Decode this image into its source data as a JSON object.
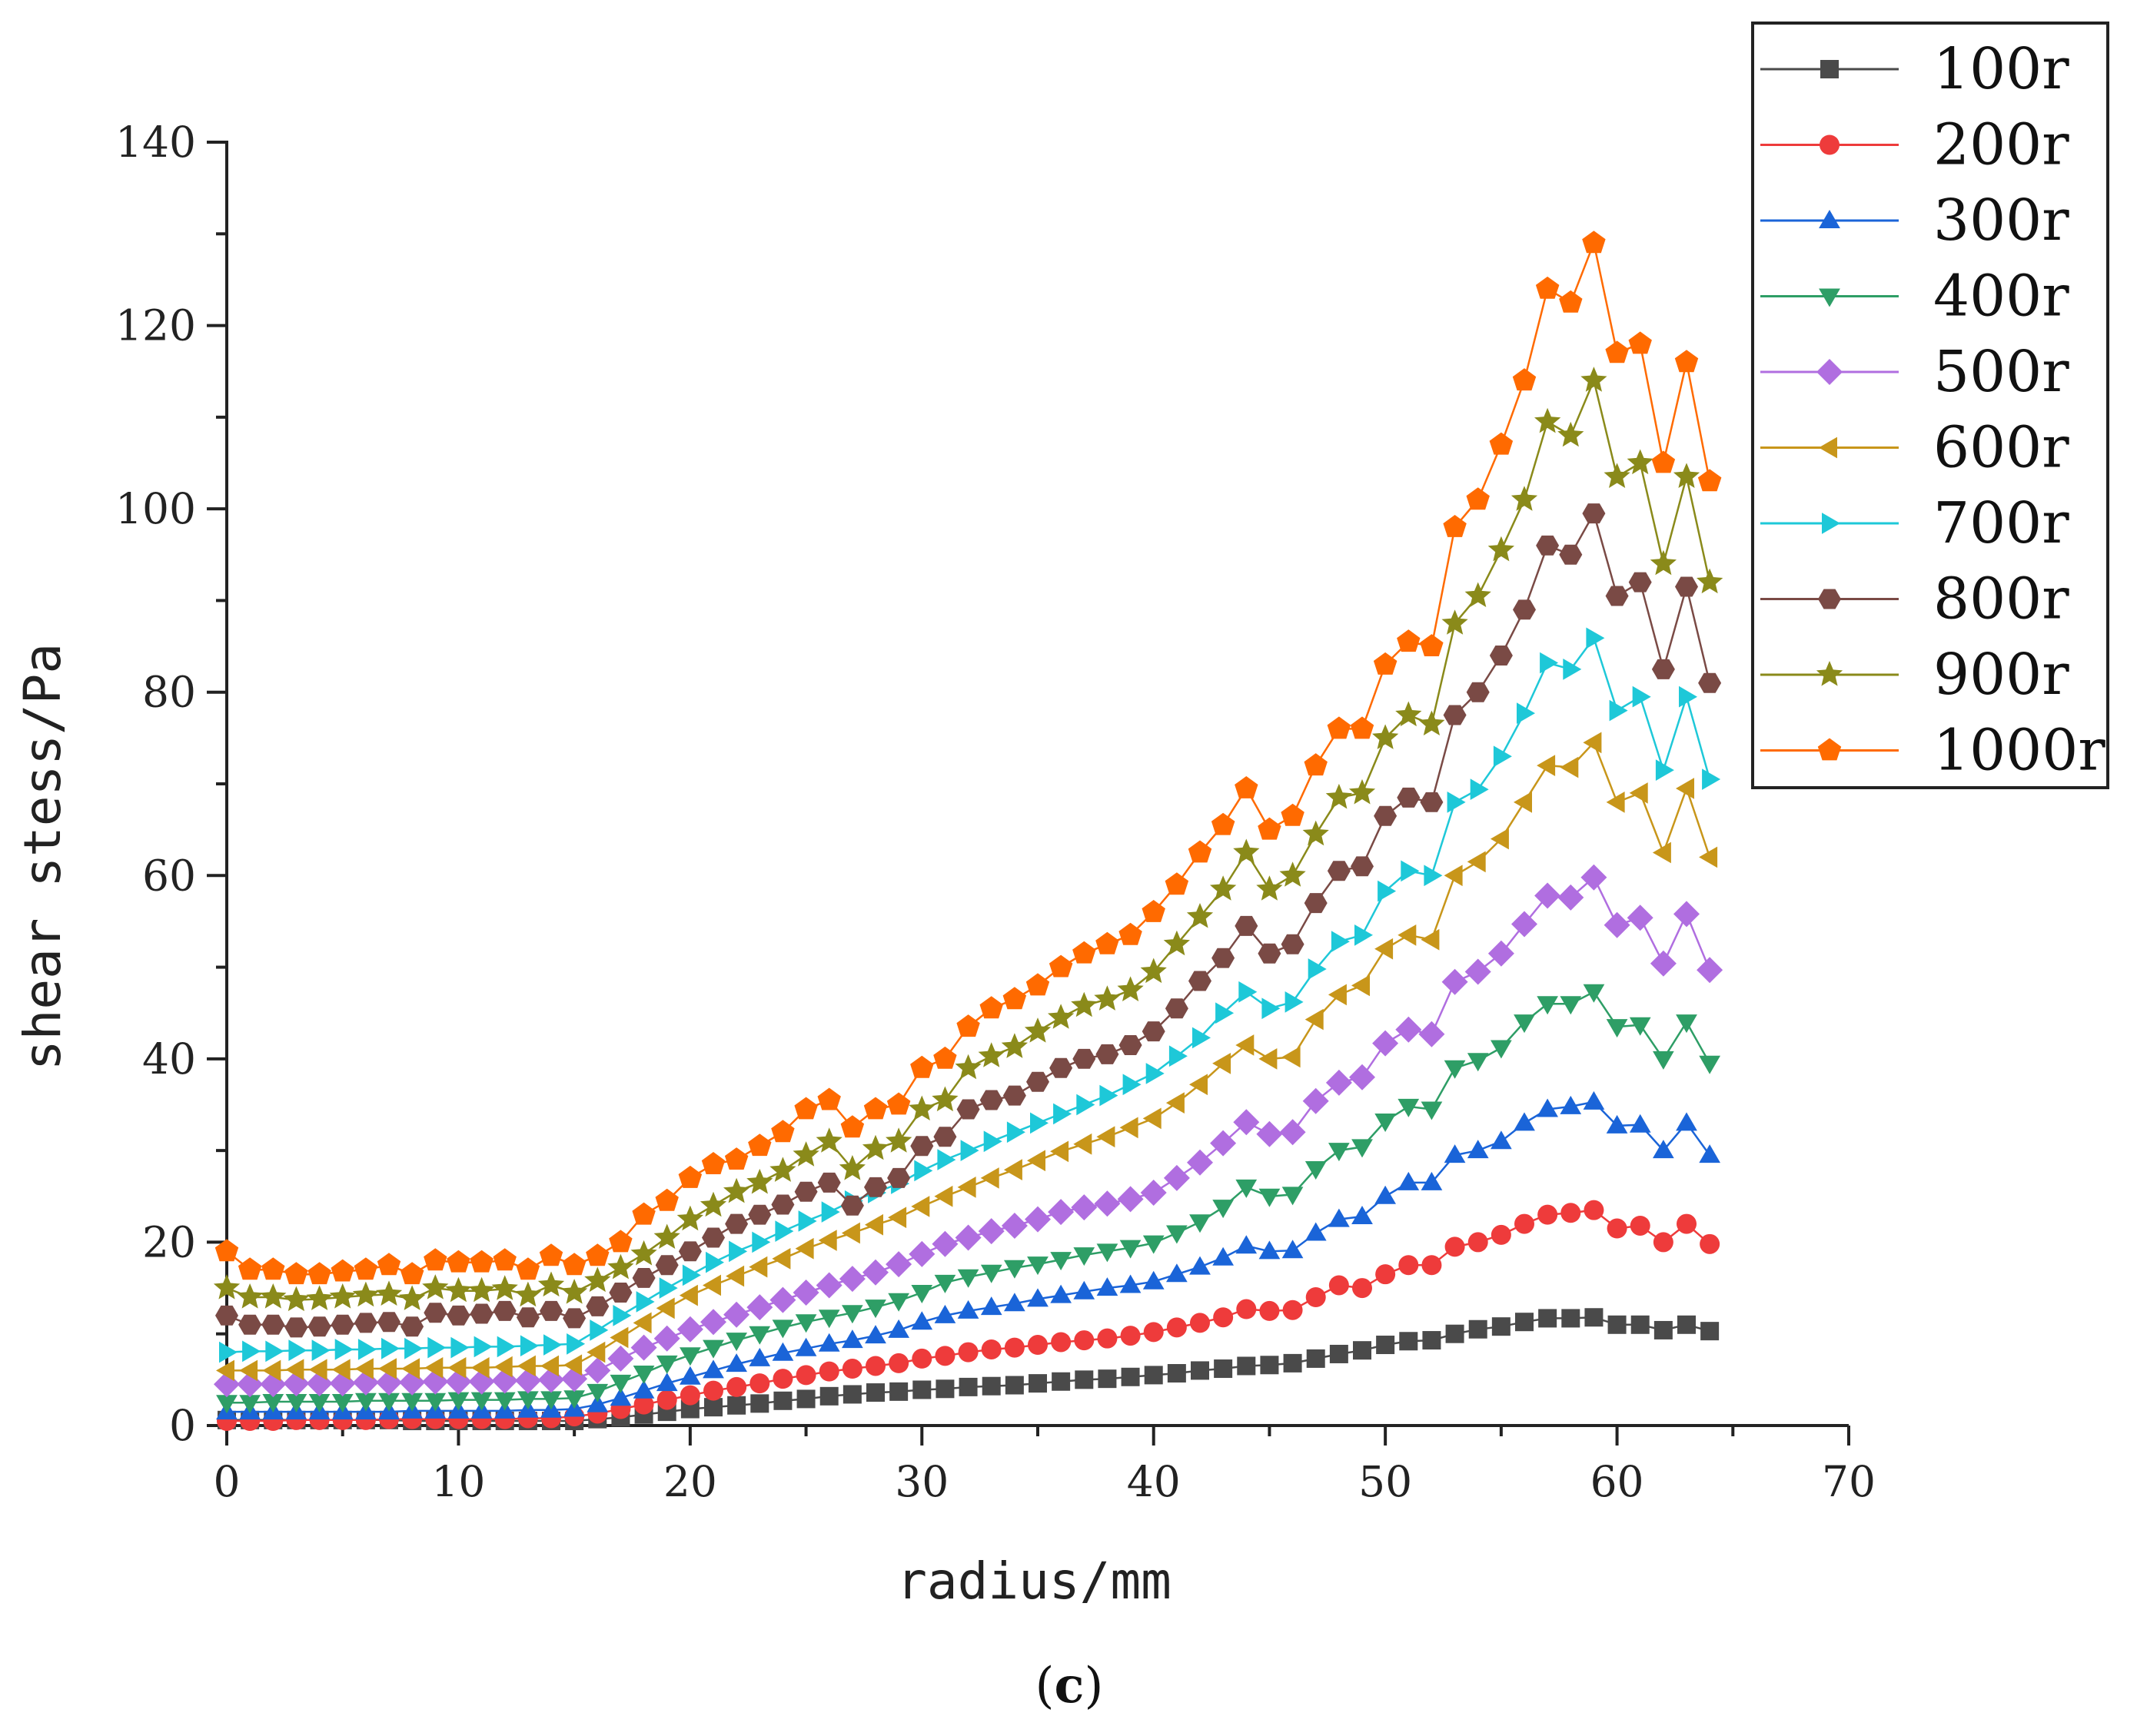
{
  "chart_data": {
    "type": "line",
    "title": "",
    "xlabel": "radius/mm",
    "ylabel": "shear stess/Pa",
    "xlim": [
      0,
      70
    ],
    "ylim": [
      0,
      140
    ],
    "xticks": [
      0,
      10,
      20,
      30,
      40,
      50,
      60,
      70
    ],
    "yticks": [
      0,
      20,
      40,
      60,
      80,
      100,
      120,
      140
    ],
    "grid": false,
    "legend_position": "top-right",
    "caption": {
      "open": "(",
      "letter": "c",
      "close": ")"
    },
    "x": [
      0,
      1,
      2,
      3,
      4,
      5,
      6,
      7,
      8,
      9,
      10,
      11,
      12,
      13,
      14,
      15,
      16,
      17,
      18,
      19,
      20,
      21,
      22,
      23,
      24,
      25,
      26,
      27,
      28,
      29,
      30,
      31,
      32,
      33,
      34,
      35,
      36,
      37,
      38,
      39,
      40,
      41,
      42,
      43,
      44,
      45,
      46,
      47,
      48,
      49,
      50,
      51,
      52,
      53,
      54,
      55,
      56,
      57,
      58,
      59,
      60,
      61,
      62,
      63,
      64
    ],
    "series": [
      {
        "name": "100r",
        "color": "#4a4a4a",
        "marker": "square",
        "values": [
          0.6,
          0.6,
          0.6,
          0.6,
          0.6,
          0.6,
          0.6,
          0.6,
          0.5,
          0.5,
          0.5,
          0.5,
          0.5,
          0.5,
          0.5,
          0.5,
          0.7,
          0.9,
          1.2,
          1.5,
          1.8,
          2.0,
          2.2,
          2.4,
          2.7,
          2.9,
          3.2,
          3.4,
          3.6,
          3.7,
          3.9,
          4.0,
          4.2,
          4.3,
          4.4,
          4.6,
          4.8,
          5.0,
          5.1,
          5.3,
          5.5,
          5.7,
          6.0,
          6.2,
          6.5,
          6.6,
          6.8,
          7.3,
          7.8,
          8.2,
          8.8,
          9.2,
          9.3,
          10.0,
          10.5,
          10.8,
          11.3,
          11.7,
          11.7,
          11.8,
          11.0,
          11.0,
          10.4,
          11.0,
          10.3
        ]
      },
      {
        "name": "200r",
        "color": "#ee3b3b",
        "marker": "circle",
        "values": [
          0.5,
          0.5,
          0.5,
          0.6,
          0.6,
          0.6,
          0.6,
          0.7,
          0.7,
          0.7,
          0.7,
          0.7,
          0.7,
          0.8,
          0.8,
          1.0,
          1.3,
          1.8,
          2.3,
          2.8,
          3.3,
          3.8,
          4.2,
          4.6,
          5.1,
          5.5,
          5.9,
          6.2,
          6.5,
          6.8,
          7.3,
          7.6,
          8.0,
          8.3,
          8.5,
          8.8,
          9.1,
          9.3,
          9.5,
          9.8,
          10.2,
          10.7,
          11.2,
          11.8,
          12.7,
          12.5,
          12.6,
          14.0,
          15.3,
          15.0,
          16.5,
          17.5,
          17.5,
          19.5,
          20.0,
          20.8,
          22.0,
          23.0,
          23.2,
          23.5,
          21.5,
          21.8,
          20.0,
          22.0,
          19.8
        ]
      },
      {
        "name": "300r",
        "color": "#1a64d8",
        "marker": "triangle-up",
        "values": [
          1.5,
          1.5,
          1.5,
          1.5,
          1.5,
          1.5,
          1.5,
          1.5,
          1.6,
          1.6,
          1.6,
          1.6,
          1.6,
          1.7,
          1.7,
          1.8,
          2.3,
          3.0,
          3.8,
          4.6,
          5.3,
          6.0,
          6.7,
          7.3,
          7.9,
          8.4,
          8.9,
          9.3,
          9.8,
          10.4,
          11.3,
          12.0,
          12.5,
          12.9,
          13.3,
          13.8,
          14.2,
          14.6,
          15.0,
          15.3,
          15.7,
          16.5,
          17.3,
          18.3,
          19.6,
          19.0,
          19.1,
          21.0,
          22.5,
          22.8,
          25.0,
          26.5,
          26.5,
          29.5,
          30.0,
          31.0,
          33.0,
          34.5,
          34.8,
          35.3,
          32.7,
          32.8,
          30.0,
          33.0,
          29.5
        ]
      },
      {
        "name": "400r",
        "color": "#2e9e66",
        "marker": "triangle-down",
        "values": [
          2.5,
          2.5,
          2.6,
          2.6,
          2.6,
          2.6,
          2.7,
          2.7,
          2.7,
          2.7,
          2.8,
          2.8,
          2.8,
          2.9,
          2.9,
          3.0,
          3.7,
          4.7,
          5.7,
          6.8,
          7.7,
          8.5,
          9.3,
          10.0,
          10.7,
          11.3,
          11.8,
          12.3,
          12.9,
          13.6,
          14.5,
          15.6,
          16.2,
          16.7,
          17.2,
          17.6,
          18.1,
          18.6,
          19.0,
          19.4,
          19.9,
          21.0,
          22.2,
          23.8,
          26.0,
          25.0,
          25.2,
          28.0,
          30.0,
          30.4,
          33.2,
          34.8,
          34.5,
          39.0,
          39.8,
          41.2,
          44.0,
          46.0,
          46.0,
          47.3,
          43.5,
          43.7,
          40.0,
          44.0,
          39.5
        ]
      },
      {
        "name": "500r",
        "color": "#b06ee0",
        "marker": "diamond",
        "values": [
          4.5,
          4.5,
          4.5,
          4.6,
          4.6,
          4.6,
          4.7,
          4.7,
          4.7,
          4.8,
          4.8,
          4.8,
          4.9,
          4.9,
          5.0,
          5.1,
          6.0,
          7.3,
          8.5,
          9.5,
          10.5,
          11.3,
          12.1,
          12.9,
          13.7,
          14.5,
          15.3,
          16.0,
          16.7,
          17.6,
          18.7,
          19.8,
          20.5,
          21.2,
          21.8,
          22.5,
          23.3,
          23.8,
          24.2,
          24.7,
          25.4,
          27.0,
          28.7,
          30.8,
          33.1,
          31.8,
          32.0,
          35.4,
          37.4,
          38.0,
          41.7,
          43.2,
          42.7,
          48.4,
          49.5,
          51.5,
          54.7,
          57.8,
          57.6,
          59.8,
          54.6,
          55.4,
          50.4,
          55.8,
          49.7
        ]
      },
      {
        "name": "600r",
        "color": "#c8961a",
        "marker": "triangle-left",
        "values": [
          6.0,
          6.0,
          6.0,
          6.1,
          6.1,
          6.1,
          6.2,
          6.2,
          6.2,
          6.3,
          6.3,
          6.3,
          6.4,
          6.5,
          6.5,
          6.6,
          8.0,
          9.6,
          11.2,
          12.8,
          14.2,
          15.3,
          16.3,
          17.3,
          18.2,
          19.3,
          20.2,
          21.0,
          21.9,
          22.7,
          23.9,
          25.0,
          26.0,
          27.0,
          27.9,
          28.9,
          29.9,
          30.7,
          31.5,
          32.5,
          33.5,
          35.2,
          37.2,
          39.5,
          41.5,
          40.0,
          40.2,
          44.3,
          47.0,
          48.0,
          52.0,
          53.5,
          53.0,
          60.0,
          61.5,
          64.0,
          68.0,
          72.0,
          71.8,
          74.5,
          68.0,
          69.0,
          62.5,
          69.5,
          62.0
        ]
      },
      {
        "name": "700r",
        "color": "#1ec8d8",
        "marker": "triangle-right",
        "values": [
          8.0,
          8.1,
          8.1,
          8.2,
          8.2,
          8.3,
          8.3,
          8.4,
          8.4,
          8.5,
          8.5,
          8.6,
          8.6,
          8.7,
          8.8,
          8.9,
          10.4,
          12.0,
          13.5,
          15.0,
          16.4,
          17.8,
          19.0,
          20.0,
          21.2,
          22.3,
          23.3,
          24.5,
          25.4,
          26.4,
          27.8,
          29.0,
          30.0,
          31.0,
          32.0,
          33.0,
          34.0,
          35.0,
          36.0,
          37.2,
          38.4,
          40.3,
          42.3,
          45.0,
          47.3,
          45.5,
          46.2,
          49.8,
          52.8,
          53.5,
          58.3,
          60.5,
          60.0,
          68.0,
          69.4,
          73.0,
          77.7,
          83.2,
          82.5,
          85.9,
          78.0,
          79.5,
          71.5,
          79.5,
          70.5
        ]
      },
      {
        "name": "800r",
        "color": "#7a4a45",
        "marker": "hexagon",
        "values": [
          12.0,
          11.0,
          11.0,
          10.7,
          10.8,
          11.0,
          11.2,
          11.3,
          10.8,
          12.3,
          12.0,
          12.2,
          12.5,
          11.8,
          12.5,
          11.7,
          13.0,
          14.5,
          16.1,
          17.5,
          19.0,
          20.5,
          22.0,
          23.0,
          24.1,
          25.5,
          26.5,
          24.0,
          26.0,
          27.0,
          30.5,
          31.5,
          34.5,
          35.5,
          36.0,
          37.5,
          39.0,
          40.0,
          40.5,
          41.5,
          43.0,
          45.5,
          48.5,
          51.0,
          54.5,
          51.5,
          52.5,
          57.0,
          60.5,
          61.0,
          66.5,
          68.5,
          68.0,
          77.5,
          80.0,
          84.0,
          89.0,
          96.0,
          95.0,
          99.5,
          90.5,
          92.0,
          82.5,
          91.5,
          81.0
        ]
      },
      {
        "name": "900r",
        "color": "#8a8a1a",
        "marker": "star",
        "values": [
          15.0,
          14.0,
          14.0,
          13.7,
          13.8,
          14.0,
          14.2,
          14.3,
          13.8,
          15.0,
          14.7,
          14.7,
          14.9,
          14.2,
          15.3,
          14.5,
          15.8,
          17.2,
          18.7,
          20.5,
          22.5,
          24.0,
          25.5,
          26.5,
          27.8,
          29.5,
          31.0,
          28.0,
          30.2,
          31.0,
          34.5,
          35.5,
          39.0,
          40.3,
          41.3,
          43.0,
          44.5,
          45.8,
          46.5,
          47.5,
          49.5,
          52.5,
          55.5,
          58.5,
          62.5,
          58.5,
          60.0,
          64.5,
          68.5,
          69.0,
          75.0,
          77.5,
          76.5,
          87.5,
          90.5,
          95.5,
          101.0,
          109.5,
          108.0,
          114.0,
          103.5,
          105.0,
          94.0,
          103.5,
          92.0
        ]
      },
      {
        "name": "1000r",
        "color": "#ff6a00",
        "marker": "pentagon",
        "values": [
          19.0,
          17.0,
          17.0,
          16.5,
          16.5,
          16.8,
          17.0,
          17.5,
          16.5,
          18.0,
          17.8,
          17.8,
          18.0,
          17.0,
          18.5,
          17.5,
          18.5,
          20.0,
          23.0,
          24.5,
          27.0,
          28.5,
          29.0,
          30.5,
          32.0,
          34.5,
          35.5,
          32.5,
          34.5,
          35.0,
          39.0,
          40.0,
          43.5,
          45.5,
          46.5,
          48.0,
          50.0,
          51.5,
          52.5,
          53.5,
          56.0,
          59.0,
          62.5,
          65.5,
          69.5,
          65.0,
          66.5,
          72.0,
          76.0,
          76.0,
          83.0,
          85.5,
          85.0,
          98.0,
          101.0,
          107.0,
          114.0,
          124.0,
          122.5,
          129.0,
          117.0,
          118.0,
          105.0,
          116.0,
          103.0
        ]
      }
    ]
  }
}
